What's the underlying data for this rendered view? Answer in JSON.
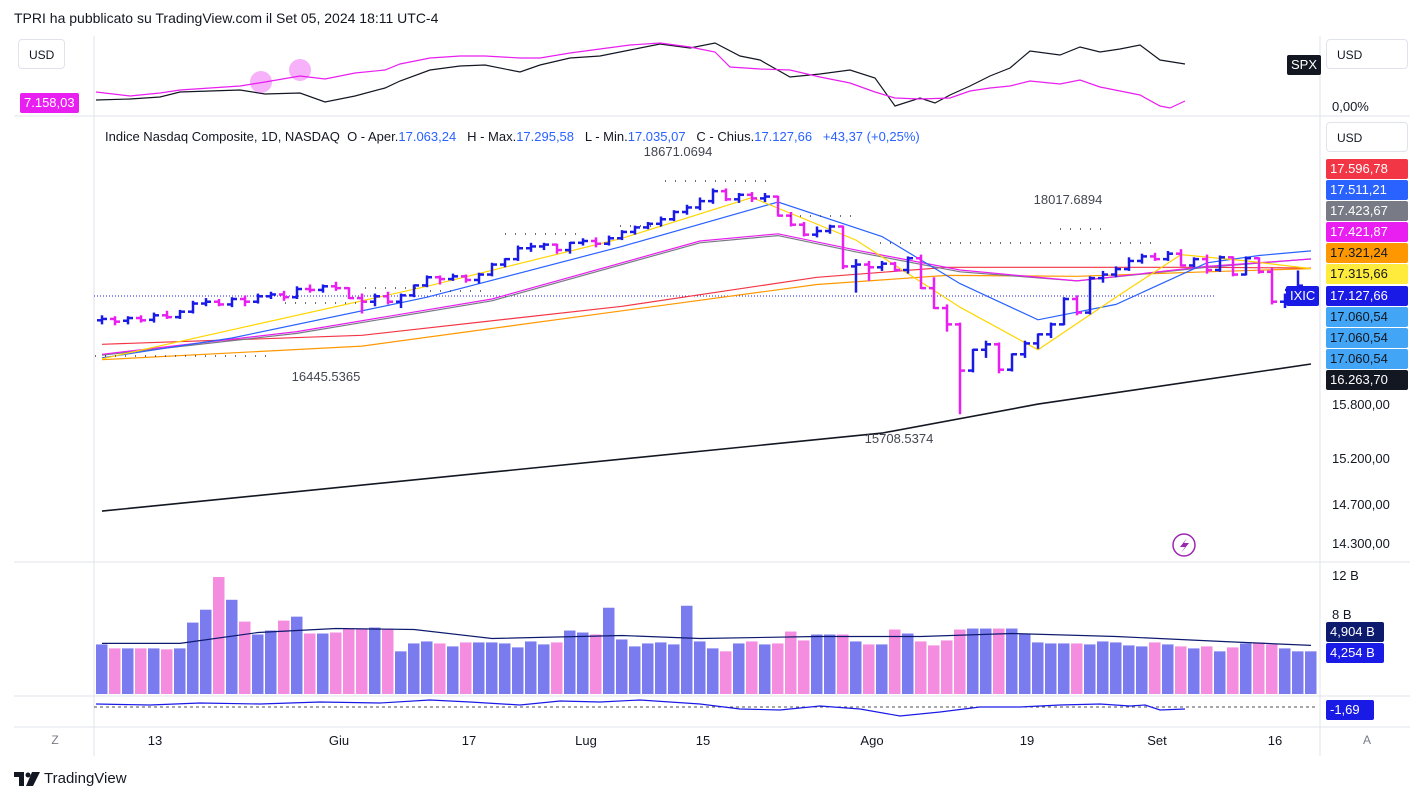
{
  "header": {
    "text": "TPRI ha pubblicato su TradingView.com il Set 05, 2024 18:11 UTC-4"
  },
  "currency": "USD",
  "top_panel": {
    "left_value": "7.158,03",
    "right_symbol": "SPX",
    "right_value": "0,00%"
  },
  "legend": {
    "name": "Indice Nasdaq Composite, 1D, NASDAQ",
    "o_label": "O - Aper.",
    "o_value": "17.063,24",
    "h_label": "H - Max.",
    "h_value": "17.295,58",
    "l_label": "L - Min.",
    "l_value": "17.035,07",
    "c_label": "C - Chius.",
    "c_value": "17.127,66",
    "change": "+43,37 (+0,25%)"
  },
  "price_tags": [
    {
      "text": "17.596,78",
      "bg": "#f23645",
      "fg": "#ffffff"
    },
    {
      "text": "17.511,21",
      "bg": "#2962ff",
      "fg": "#ffffff"
    },
    {
      "text": "17.423,67",
      "bg": "#787b86",
      "fg": "#ffffff"
    },
    {
      "text": "17.421,87",
      "bg": "#e91ef0",
      "fg": "#ffffff"
    },
    {
      "text": "17.321,24",
      "bg": "#ff9800",
      "fg": "#131722"
    },
    {
      "text": "17.315,66",
      "bg": "#ffeb3b",
      "fg": "#131722"
    },
    {
      "text": "17.127,66",
      "bg": "#1a1ae6",
      "fg": "#ffffff"
    },
    {
      "text": "17.060,54",
      "bg": "#42a5f5",
      "fg": "#131722"
    },
    {
      "text": "17.060,54",
      "bg": "#42a5f5",
      "fg": "#131722"
    },
    {
      "text": "17.060,54",
      "bg": "#42a5f5",
      "fg": "#131722"
    },
    {
      "text": "16.263,70",
      "bg": "#131722",
      "fg": "#ffffff"
    }
  ],
  "symbol_tag": "IXIC",
  "price_axis": [
    "15.800,00",
    "15.200,00",
    "14.700,00",
    "14.300,00"
  ],
  "annotations": {
    "high1": "18671.0694",
    "high2": "18017.6894",
    "low1": "16445.5365",
    "low2": "15708.5374"
  },
  "volume_axis": [
    "12 B",
    "8 B"
  ],
  "volume_tags": [
    {
      "text": "4,904 B",
      "bg": "#0d1b6e",
      "fg": "#ffffff"
    },
    {
      "text": "4,254 B",
      "bg": "#1a1ae6",
      "fg": "#ffffff"
    }
  ],
  "oscillator_tag": {
    "text": "-1,69",
    "bg": "#1a1ae6",
    "fg": "#ffffff"
  },
  "x_labels": [
    "13",
    "Giu",
    "17",
    "Lug",
    "15",
    "Ago",
    "19",
    "Set",
    "16"
  ],
  "bottom_buttons": {
    "left": "Z",
    "right": "A"
  },
  "footer": {
    "brand": "TradingView"
  },
  "colors": {
    "up": "#1a1ae6",
    "down": "#e91ef0",
    "vol_up": "#7b7bf0",
    "vol_down": "#f48ce0"
  },
  "chart_data": {
    "type": "ohlc",
    "title": "Indice Nasdaq Composite, 1D, NASDAQ",
    "ylim": [
      14100,
      18900
    ],
    "candles": [
      [
        16745,
        16800,
        16700,
        16760
      ],
      [
        16760,
        16790,
        16690,
        16730
      ],
      [
        16740,
        16790,
        16700,
        16770
      ],
      [
        16770,
        16800,
        16720,
        16745
      ],
      [
        16750,
        16830,
        16720,
        16800
      ],
      [
        16800,
        16850,
        16760,
        16780
      ],
      [
        16780,
        16860,
        16760,
        16840
      ],
      [
        16840,
        16960,
        16820,
        16930
      ],
      [
        16930,
        16990,
        16900,
        16950
      ],
      [
        16950,
        16980,
        16900,
        16920
      ],
      [
        16920,
        17000,
        16890,
        16980
      ],
      [
        16980,
        17020,
        16900,
        16950
      ],
      [
        16950,
        17040,
        16930,
        17010
      ],
      [
        17010,
        17060,
        16980,
        17030
      ],
      [
        17030,
        17070,
        16960,
        17000
      ],
      [
        17000,
        17120,
        16980,
        17090
      ],
      [
        17090,
        17140,
        17050,
        17080
      ],
      [
        17080,
        17140,
        17050,
        17120
      ],
      [
        17120,
        17170,
        17070,
        17100
      ],
      [
        17100,
        17110,
        16980,
        16990
      ],
      [
        16990,
        17040,
        16820,
        16950
      ],
      [
        16950,
        17040,
        16900,
        17010
      ],
      [
        17010,
        17060,
        16920,
        16950
      ],
      [
        16950,
        17040,
        16880,
        17020
      ],
      [
        17020,
        17140,
        17000,
        17130
      ],
      [
        17130,
        17240,
        17110,
        17220
      ],
      [
        17220,
        17240,
        17140,
        17200
      ],
      [
        17200,
        17260,
        17180,
        17230
      ],
      [
        17230,
        17250,
        17160,
        17190
      ],
      [
        17190,
        17270,
        17150,
        17250
      ],
      [
        17250,
        17380,
        17230,
        17360
      ],
      [
        17360,
        17430,
        17330,
        17420
      ],
      [
        17420,
        17570,
        17400,
        17540
      ],
      [
        17540,
        17600,
        17500,
        17560
      ],
      [
        17560,
        17600,
        17520,
        17580
      ],
      [
        17580,
        17590,
        17480,
        17520
      ],
      [
        17520,
        17610,
        17480,
        17600
      ],
      [
        17600,
        17650,
        17570,
        17620
      ],
      [
        17620,
        17660,
        17550,
        17590
      ],
      [
        17590,
        17680,
        17570,
        17650
      ],
      [
        17650,
        17740,
        17630,
        17720
      ],
      [
        17720,
        17790,
        17690,
        17770
      ],
      [
        17770,
        17830,
        17750,
        17810
      ],
      [
        17810,
        17890,
        17780,
        17860
      ],
      [
        17860,
        17960,
        17840,
        17940
      ],
      [
        17940,
        18020,
        17910,
        17990
      ],
      [
        17990,
        18100,
        17960,
        18060
      ],
      [
        18060,
        18200,
        18030,
        18170
      ],
      [
        18170,
        18200,
        18060,
        18080
      ],
      [
        18080,
        18150,
        18040,
        18130
      ],
      [
        18130,
        18160,
        18050,
        18090
      ],
      [
        18090,
        18150,
        18050,
        18110
      ],
      [
        18110,
        18120,
        17890,
        17900
      ],
      [
        17900,
        17940,
        17780,
        17800
      ],
      [
        17800,
        17830,
        17670,
        17690
      ],
      [
        17690,
        17780,
        17660,
        17730
      ],
      [
        17730,
        17800,
        17700,
        17780
      ],
      [
        17780,
        17790,
        17310,
        17340
      ],
      [
        17340,
        17420,
        17050,
        17360
      ],
      [
        17360,
        17400,
        17180,
        17330
      ],
      [
        17330,
        17400,
        17290,
        17370
      ],
      [
        17370,
        17390,
        17280,
        17300
      ],
      [
        17300,
        17450,
        17260,
        17430
      ],
      [
        17430,
        17470,
        17090,
        17100
      ],
      [
        17100,
        17220,
        16870,
        16880
      ],
      [
        16880,
        16920,
        16620,
        16700
      ],
      [
        16700,
        16720,
        15708,
        16190
      ],
      [
        16190,
        16430,
        16170,
        16420
      ],
      [
        16420,
        16520,
        16330,
        16480
      ],
      [
        16480,
        16500,
        16160,
        16200
      ],
      [
        16200,
        16380,
        16180,
        16370
      ],
      [
        16370,
        16520,
        16330,
        16490
      ],
      [
        16490,
        16600,
        16430,
        16590
      ],
      [
        16590,
        16720,
        16550,
        16700
      ],
      [
        16700,
        17000,
        16690,
        16980
      ],
      [
        16980,
        17020,
        16800,
        16830
      ],
      [
        16830,
        17230,
        16810,
        17210
      ],
      [
        17210,
        17290,
        17160,
        17250
      ],
      [
        17250,
        17340,
        17220,
        17310
      ],
      [
        17310,
        17440,
        17290,
        17400
      ],
      [
        17400,
        17480,
        17370,
        17450
      ],
      [
        17450,
        17490,
        17400,
        17420
      ],
      [
        17420,
        17510,
        17400,
        17480
      ],
      [
        17480,
        17530,
        17340,
        17350
      ],
      [
        17350,
        17440,
        17330,
        17420
      ],
      [
        17420,
        17470,
        17260,
        17300
      ],
      [
        17300,
        17460,
        17280,
        17440
      ],
      [
        17440,
        17450,
        17230,
        17250
      ],
      [
        17250,
        17450,
        17240,
        17430
      ],
      [
        17430,
        17440,
        17260,
        17280
      ],
      [
        17280,
        17320,
        16920,
        16950
      ],
      [
        16950,
        17040,
        16880,
        17080
      ],
      [
        17063,
        17295,
        17035,
        17127
      ]
    ],
    "sma200": [
      [
        0,
        14640
      ],
      [
        30,
        15070
      ],
      [
        60,
        15500
      ],
      [
        72,
        15820
      ],
      [
        93,
        16263
      ]
    ],
    "ma_red": [
      [
        0,
        16480
      ],
      [
        20,
        16580
      ],
      [
        40,
        16900
      ],
      [
        55,
        17220
      ],
      [
        65,
        17330
      ],
      [
        75,
        17330
      ],
      [
        85,
        17330
      ],
      [
        93,
        17321
      ]
    ],
    "ma_orange": [
      [
        0,
        16310
      ],
      [
        20,
        16460
      ],
      [
        40,
        16850
      ],
      [
        55,
        17140
      ],
      [
        65,
        17240
      ],
      [
        75,
        17230
      ],
      [
        85,
        17280
      ],
      [
        93,
        17315
      ]
    ],
    "ma_magenta": [
      [
        0,
        16370
      ],
      [
        15,
        16620
      ],
      [
        30,
        16980
      ],
      [
        46,
        17620
      ],
      [
        52,
        17700
      ],
      [
        58,
        17520
      ],
      [
        66,
        17300
      ],
      [
        75,
        17180
      ],
      [
        85,
        17340
      ],
      [
        93,
        17421
      ]
    ],
    "ma_gray": [
      [
        0,
        16360
      ],
      [
        15,
        16600
      ],
      [
        30,
        16960
      ],
      [
        46,
        17600
      ],
      [
        52,
        17680
      ],
      [
        58,
        17500
      ],
      [
        66,
        17280
      ],
      [
        75,
        17180
      ],
      [
        85,
        17330
      ],
      [
        93,
        17423
      ]
    ],
    "ma_blue": [
      [
        0,
        16330
      ],
      [
        10,
        16550
      ],
      [
        25,
        17000
      ],
      [
        40,
        17560
      ],
      [
        52,
        18050
      ],
      [
        60,
        17670
      ],
      [
        66,
        17150
      ],
      [
        72,
        16750
      ],
      [
        78,
        16920
      ],
      [
        85,
        17380
      ],
      [
        89,
        17460
      ],
      [
        93,
        17511
      ]
    ],
    "ma_yellow": [
      [
        0,
        16320
      ],
      [
        10,
        16640
      ],
      [
        25,
        17120
      ],
      [
        40,
        17650
      ],
      [
        50,
        18100
      ],
      [
        58,
        17630
      ],
      [
        66,
        16890
      ],
      [
        72,
        16420
      ],
      [
        78,
        17000
      ],
      [
        83,
        17470
      ],
      [
        88,
        17400
      ],
      [
        93,
        17315
      ]
    ],
    "volumes": [
      5.0,
      4.6,
      4.6,
      4.6,
      4.6,
      4.5,
      4.6,
      7.2,
      8.5,
      11.8,
      9.5,
      7.3,
      6.0,
      6.4,
      7.4,
      7.8,
      6.1,
      6.1,
      6.2,
      6.6,
      6.6,
      6.7,
      6.6,
      4.3,
      5.1,
      5.3,
      5.1,
      4.8,
      5.2,
      5.2,
      5.2,
      5.1,
      4.7,
      5.3,
      5.0,
      5.2,
      6.4,
      6.2,
      6.0,
      8.7,
      5.5,
      4.8,
      5.1,
      5.2,
      5.0,
      8.9,
      5.3,
      4.6,
      4.3,
      5.1,
      5.3,
      5.0,
      5.1,
      6.3,
      5.4,
      6.0,
      6.0,
      6.0,
      5.3,
      5.0,
      5.0,
      6.5,
      6.1,
      5.3,
      4.9,
      5.4,
      6.5,
      6.6,
      6.6,
      6.6,
      6.6,
      6.1,
      5.2,
      5.1,
      5.1,
      5.1,
      5.0,
      5.3,
      5.2,
      4.9,
      4.8,
      5.2,
      5.0,
      4.8,
      4.6,
      4.8,
      4.3,
      4.7,
      5.1,
      5.2,
      5.0,
      4.6,
      4.3,
      4.3
    ],
    "volume_ma": [
      [
        0,
        5.1
      ],
      [
        6,
        5.1
      ],
      [
        12,
        6.2
      ],
      [
        18,
        6.6
      ],
      [
        24,
        6.5
      ],
      [
        30,
        5.6
      ],
      [
        40,
        5.9
      ],
      [
        46,
        5.6
      ],
      [
        55,
        5.8
      ],
      [
        63,
        5.8
      ],
      [
        70,
        6.1
      ],
      [
        78,
        5.8
      ],
      [
        86,
        5.3
      ],
      [
        93,
        4.9
      ]
    ],
    "volume_ylim": [
      0,
      12
    ]
  }
}
